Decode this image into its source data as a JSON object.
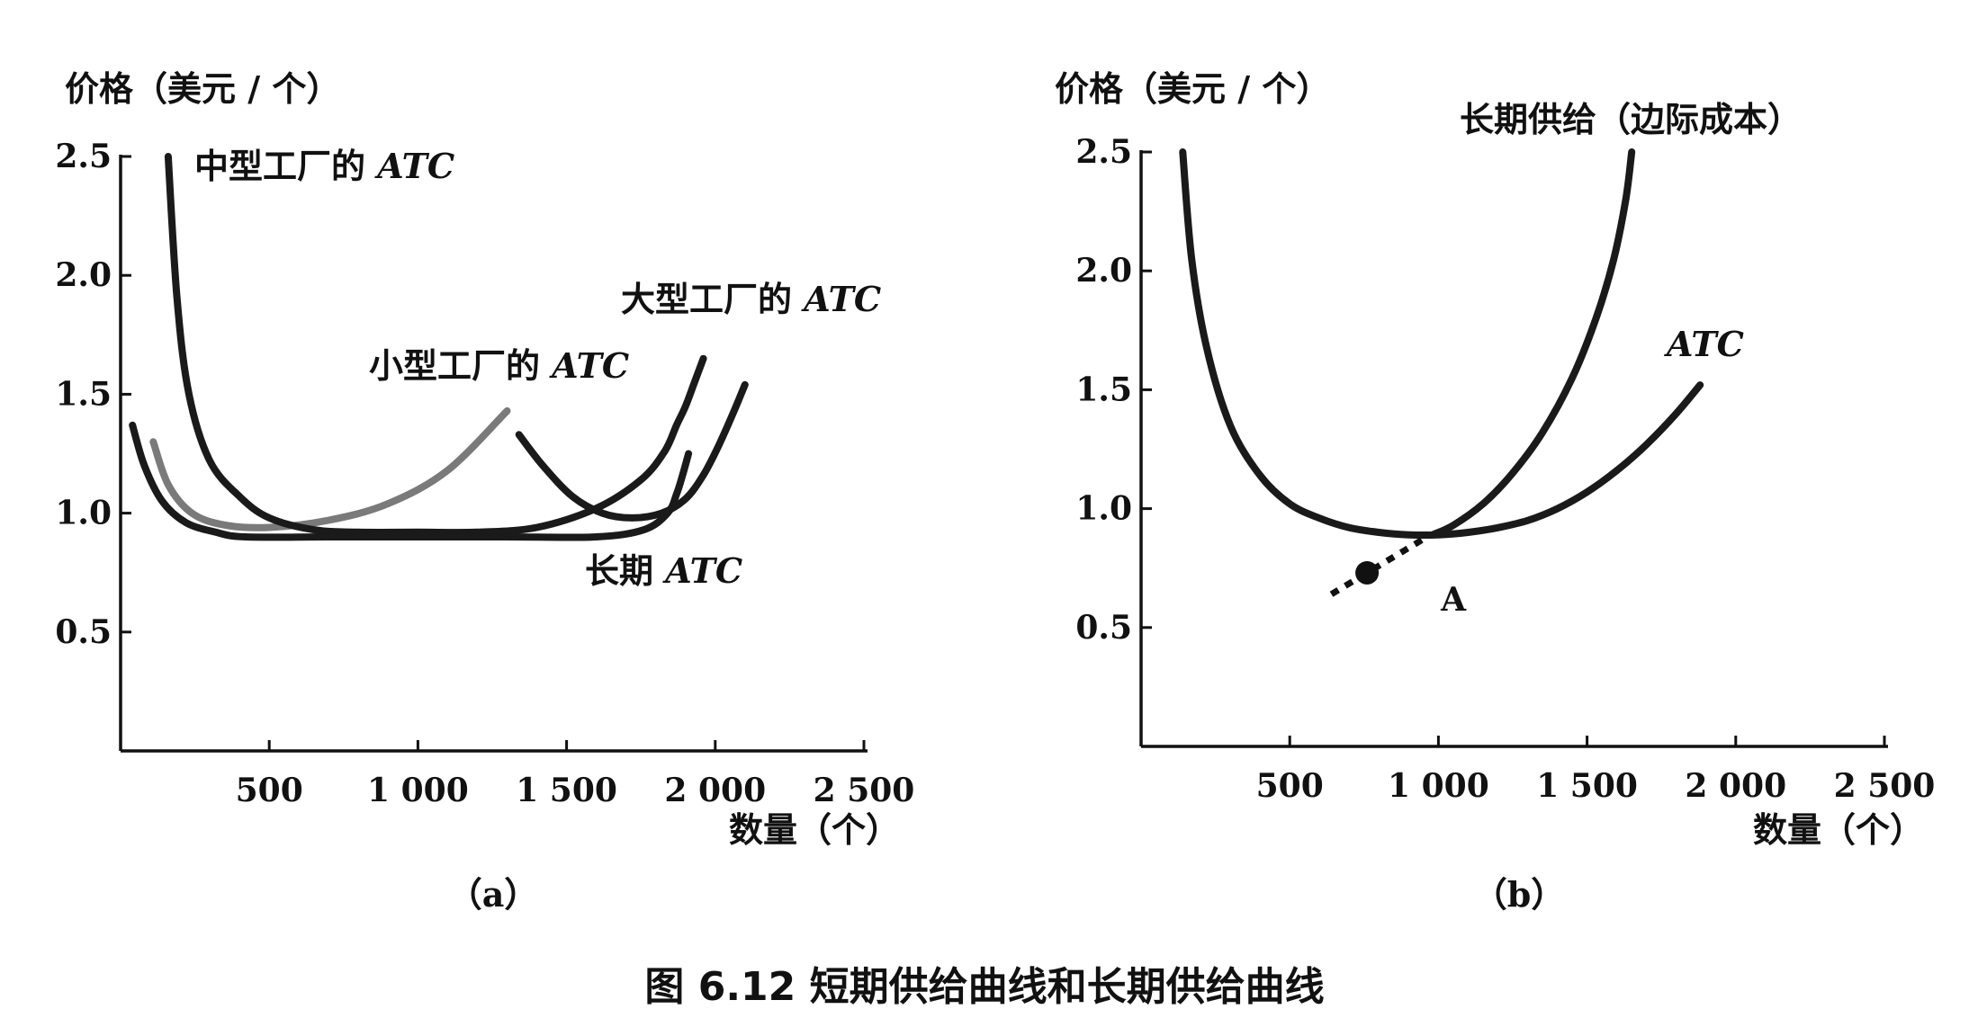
{
  "caption": "图 6.12   短期供给曲线和长期供给曲线",
  "chart_data": [
    {
      "type": "line",
      "panel_label": "（a）",
      "ylabel": "价格（美元 / 个）",
      "xlabel": "数量（个）",
      "xlim": [
        0,
        2500
      ],
      "ylim": [
        0,
        2.5
      ],
      "xticks": [
        500,
        1000,
        1500,
        2000,
        2500
      ],
      "xtick_labels": [
        "500",
        "1 000",
        "1 500",
        "2 000",
        "2 500"
      ],
      "yticks": [
        0.5,
        1.0,
        1.5,
        2.0,
        2.5
      ],
      "ytick_labels": [
        "0.5",
        "1.0",
        "1.5",
        "2.0",
        "2.5"
      ],
      "series": [
        {
          "name": "小型工厂的 ATC",
          "label_main": "小型工厂的 ",
          "label_italic": "ATC",
          "color": "#7a7a7a",
          "x": [
            110,
            160,
            240,
            350,
            500,
            700,
            900,
            1100,
            1300
          ],
          "y": [
            1.3,
            1.12,
            1.0,
            0.95,
            0.94,
            0.97,
            1.04,
            1.18,
            1.43
          ]
        },
        {
          "name": "中型工厂的 ATC",
          "label_main": "中型工厂的 ",
          "label_italic": "ATC",
          "color": "#1a1a1a",
          "x": [
            160,
            190,
            230,
            300,
            400,
            500,
            650,
            800,
            1000,
            1200,
            1400,
            1600,
            1750,
            1830,
            1870,
            1900,
            1930,
            1960
          ],
          "y": [
            2.5,
            1.9,
            1.5,
            1.22,
            1.07,
            0.98,
            0.93,
            0.92,
            0.92,
            0.92,
            0.94,
            1.02,
            1.14,
            1.26,
            1.37,
            1.45,
            1.55,
            1.65
          ]
        },
        {
          "name": "大型工厂的 ATC",
          "label_main": "大型工厂的 ",
          "label_italic": "ATC",
          "color": "#1a1a1a",
          "x": [
            1340,
            1420,
            1520,
            1620,
            1720,
            1820,
            1900,
            1960,
            2010,
            2060,
            2100
          ],
          "y": [
            1.33,
            1.2,
            1.07,
            1.0,
            0.98,
            1.0,
            1.06,
            1.16,
            1.28,
            1.42,
            1.54
          ]
        },
        {
          "name": "长期 ATC",
          "label_main": "长期 ",
          "label_italic": "ATC",
          "color": "#1a1a1a",
          "x": [
            40,
            80,
            140,
            220,
            320,
            420,
            700,
            1000,
            1300,
            1600,
            1760,
            1840,
            1870,
            1890,
            1910
          ],
          "y": [
            1.37,
            1.2,
            1.05,
            0.96,
            0.92,
            0.9,
            0.9,
            0.9,
            0.9,
            0.9,
            0.93,
            1.0,
            1.08,
            1.16,
            1.25
          ]
        }
      ]
    },
    {
      "type": "line",
      "panel_label": "（b）",
      "ylabel": "价格（美元 / 个）",
      "xlabel": "数量（个）",
      "xlim": [
        0,
        2500
      ],
      "ylim": [
        0,
        2.5
      ],
      "xticks": [
        500,
        1000,
        1500,
        2000,
        2500
      ],
      "xtick_labels": [
        "500",
        "1 000",
        "1 500",
        "2 000",
        "2 500"
      ],
      "yticks": [
        0.5,
        1.0,
        1.5,
        2.0,
        2.5
      ],
      "ytick_labels": [
        "0.5",
        "1.0",
        "1.5",
        "2.0",
        "2.5"
      ],
      "series": [
        {
          "name": "ATC",
          "label_main": "",
          "label_italic": "ATC",
          "color": "#1a1a1a",
          "x": [
            140,
            170,
            220,
            300,
            400,
            500,
            600,
            700,
            800,
            900,
            1000,
            1100,
            1200,
            1300,
            1400,
            1500,
            1600,
            1700,
            1800,
            1880
          ],
          "y": [
            2.5,
            2.05,
            1.68,
            1.35,
            1.14,
            1.02,
            0.96,
            0.92,
            0.9,
            0.89,
            0.89,
            0.9,
            0.92,
            0.95,
            1.0,
            1.07,
            1.16,
            1.27,
            1.4,
            1.52
          ]
        },
        {
          "name": "长期供给（边际成本）",
          "label_main": "长期供给（边际成本）",
          "label_italic": "",
          "color": "#1a1a1a",
          "x": [
            980,
            1050,
            1150,
            1250,
            1350,
            1450,
            1530,
            1590,
            1630,
            1650
          ],
          "y": [
            0.89,
            0.93,
            1.02,
            1.15,
            1.32,
            1.55,
            1.8,
            2.05,
            2.3,
            2.5
          ]
        }
      ],
      "dashed_extension": {
        "x": [
          640,
          720,
          800,
          880,
          960
        ],
        "y": [
          0.64,
          0.7,
          0.76,
          0.82,
          0.88
        ]
      },
      "point": {
        "label": "A",
        "x": 760,
        "y": 0.73
      }
    }
  ]
}
